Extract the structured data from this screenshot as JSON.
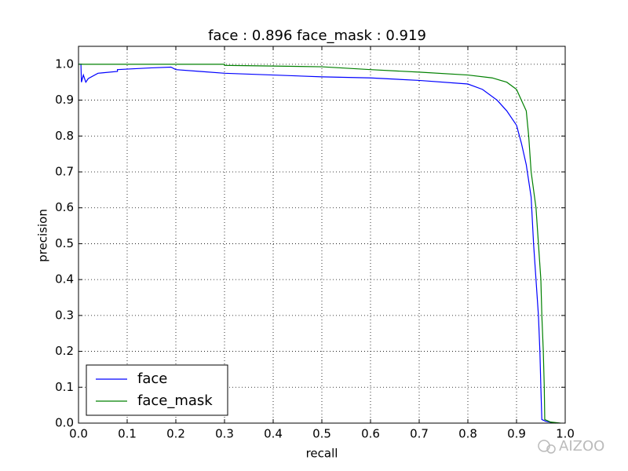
{
  "chart_data": {
    "type": "line",
    "title": "face : 0.896  face_mask : 0.919",
    "xlabel": "recall",
    "ylabel": "precision",
    "xlim": [
      0,
      1
    ],
    "ylim": [
      0,
      1.05
    ],
    "xticks": [
      {
        "value": 0,
        "label": "0.0"
      },
      0.1,
      0.2,
      0.3,
      0.4,
      0.5,
      0.6,
      0.7,
      0.8,
      0.9,
      {
        "value": 1,
        "label": "1.0"
      }
    ],
    "yticks": [
      {
        "value": 0,
        "label": "0.0"
      },
      0.1,
      0.2,
      0.3,
      0.4,
      0.5,
      0.6,
      0.7,
      0.8,
      0.9,
      {
        "value": 1,
        "label": "1.0"
      }
    ],
    "grid": true,
    "legend": "lower left",
    "series": [
      {
        "name": "face",
        "color": "#0000ff",
        "x": [
          0.0,
          0.005,
          0.006,
          0.01,
          0.015,
          0.02,
          0.04,
          0.08,
          0.08,
          0.15,
          0.19,
          0.2,
          0.25,
          0.3,
          0.4,
          0.5,
          0.6,
          0.7,
          0.8,
          0.83,
          0.86,
          0.88,
          0.9,
          0.91,
          0.92,
          0.93,
          0.935,
          0.94,
          0.945,
          0.948,
          0.95,
          0.952,
          0.96,
          0.98
        ],
        "values": [
          1.0,
          1.0,
          0.95,
          0.97,
          0.95,
          0.96,
          0.975,
          0.98,
          0.985,
          0.99,
          0.992,
          0.985,
          0.98,
          0.975,
          0.97,
          0.965,
          0.962,
          0.955,
          0.945,
          0.93,
          0.9,
          0.87,
          0.83,
          0.78,
          0.72,
          0.63,
          0.5,
          0.4,
          0.3,
          0.2,
          0.1,
          0.01,
          0.005,
          0.0
        ]
      },
      {
        "name": "face_mask",
        "color": "#008000",
        "x": [
          0.0,
          0.3,
          0.3,
          0.5,
          0.6,
          0.7,
          0.8,
          0.85,
          0.88,
          0.9,
          0.91,
          0.92,
          0.925,
          0.93,
          0.94,
          0.945,
          0.95,
          0.952,
          0.955,
          0.957,
          0.958,
          0.97,
          0.99
        ],
        "values": [
          1.0,
          1.0,
          0.997,
          0.993,
          0.985,
          0.978,
          0.97,
          0.962,
          0.95,
          0.93,
          0.9,
          0.87,
          0.8,
          0.7,
          0.6,
          0.5,
          0.4,
          0.3,
          0.2,
          0.1,
          0.01,
          0.003,
          0.0
        ]
      }
    ]
  },
  "watermark": "AIZOO"
}
